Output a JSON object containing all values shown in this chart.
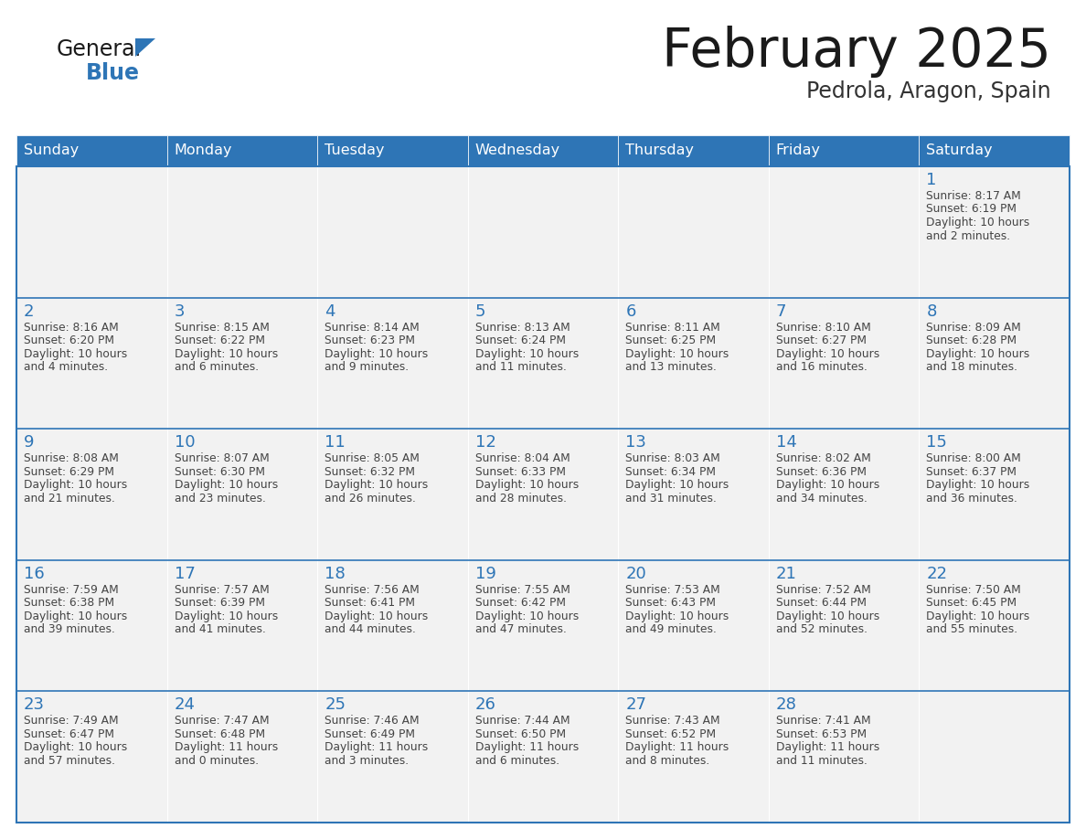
{
  "title": "February 2025",
  "subtitle": "Pedrola, Aragon, Spain",
  "header_bg": "#2E75B6",
  "header_text_color": "#FFFFFF",
  "cell_bg": "#F2F2F2",
  "border_color": "#2E75B6",
  "title_color": "#1A1A1A",
  "subtitle_color": "#333333",
  "day_num_color": "#2E75B6",
  "info_color": "#444444",
  "day_names": [
    "Sunday",
    "Monday",
    "Tuesday",
    "Wednesday",
    "Thursday",
    "Friday",
    "Saturday"
  ],
  "logo_general_color": "#1A1A1A",
  "logo_blue_color": "#2E75B6",
  "logo_triangle_color": "#2E75B6",
  "calendar": [
    [
      null,
      null,
      null,
      null,
      null,
      null,
      {
        "day": "1",
        "sunrise": "8:17 AM",
        "sunset": "6:19 PM",
        "dl1": "Daylight: 10 hours",
        "dl2": "and 2 minutes."
      }
    ],
    [
      {
        "day": "2",
        "sunrise": "8:16 AM",
        "sunset": "6:20 PM",
        "dl1": "Daylight: 10 hours",
        "dl2": "and 4 minutes."
      },
      {
        "day": "3",
        "sunrise": "8:15 AM",
        "sunset": "6:22 PM",
        "dl1": "Daylight: 10 hours",
        "dl2": "and 6 minutes."
      },
      {
        "day": "4",
        "sunrise": "8:14 AM",
        "sunset": "6:23 PM",
        "dl1": "Daylight: 10 hours",
        "dl2": "and 9 minutes."
      },
      {
        "day": "5",
        "sunrise": "8:13 AM",
        "sunset": "6:24 PM",
        "dl1": "Daylight: 10 hours",
        "dl2": "and 11 minutes."
      },
      {
        "day": "6",
        "sunrise": "8:11 AM",
        "sunset": "6:25 PM",
        "dl1": "Daylight: 10 hours",
        "dl2": "and 13 minutes."
      },
      {
        "day": "7",
        "sunrise": "8:10 AM",
        "sunset": "6:27 PM",
        "dl1": "Daylight: 10 hours",
        "dl2": "and 16 minutes."
      },
      {
        "day": "8",
        "sunrise": "8:09 AM",
        "sunset": "6:28 PM",
        "dl1": "Daylight: 10 hours",
        "dl2": "and 18 minutes."
      }
    ],
    [
      {
        "day": "9",
        "sunrise": "8:08 AM",
        "sunset": "6:29 PM",
        "dl1": "Daylight: 10 hours",
        "dl2": "and 21 minutes."
      },
      {
        "day": "10",
        "sunrise": "8:07 AM",
        "sunset": "6:30 PM",
        "dl1": "Daylight: 10 hours",
        "dl2": "and 23 minutes."
      },
      {
        "day": "11",
        "sunrise": "8:05 AM",
        "sunset": "6:32 PM",
        "dl1": "Daylight: 10 hours",
        "dl2": "and 26 minutes."
      },
      {
        "day": "12",
        "sunrise": "8:04 AM",
        "sunset": "6:33 PM",
        "dl1": "Daylight: 10 hours",
        "dl2": "and 28 minutes."
      },
      {
        "day": "13",
        "sunrise": "8:03 AM",
        "sunset": "6:34 PM",
        "dl1": "Daylight: 10 hours",
        "dl2": "and 31 minutes."
      },
      {
        "day": "14",
        "sunrise": "8:02 AM",
        "sunset": "6:36 PM",
        "dl1": "Daylight: 10 hours",
        "dl2": "and 34 minutes."
      },
      {
        "day": "15",
        "sunrise": "8:00 AM",
        "sunset": "6:37 PM",
        "dl1": "Daylight: 10 hours",
        "dl2": "and 36 minutes."
      }
    ],
    [
      {
        "day": "16",
        "sunrise": "7:59 AM",
        "sunset": "6:38 PM",
        "dl1": "Daylight: 10 hours",
        "dl2": "and 39 minutes."
      },
      {
        "day": "17",
        "sunrise": "7:57 AM",
        "sunset": "6:39 PM",
        "dl1": "Daylight: 10 hours",
        "dl2": "and 41 minutes."
      },
      {
        "day": "18",
        "sunrise": "7:56 AM",
        "sunset": "6:41 PM",
        "dl1": "Daylight: 10 hours",
        "dl2": "and 44 minutes."
      },
      {
        "day": "19",
        "sunrise": "7:55 AM",
        "sunset": "6:42 PM",
        "dl1": "Daylight: 10 hours",
        "dl2": "and 47 minutes."
      },
      {
        "day": "20",
        "sunrise": "7:53 AM",
        "sunset": "6:43 PM",
        "dl1": "Daylight: 10 hours",
        "dl2": "and 49 minutes."
      },
      {
        "day": "21",
        "sunrise": "7:52 AM",
        "sunset": "6:44 PM",
        "dl1": "Daylight: 10 hours",
        "dl2": "and 52 minutes."
      },
      {
        "day": "22",
        "sunrise": "7:50 AM",
        "sunset": "6:45 PM",
        "dl1": "Daylight: 10 hours",
        "dl2": "and 55 minutes."
      }
    ],
    [
      {
        "day": "23",
        "sunrise": "7:49 AM",
        "sunset": "6:47 PM",
        "dl1": "Daylight: 10 hours",
        "dl2": "and 57 minutes."
      },
      {
        "day": "24",
        "sunrise": "7:47 AM",
        "sunset": "6:48 PM",
        "dl1": "Daylight: 11 hours",
        "dl2": "and 0 minutes."
      },
      {
        "day": "25",
        "sunrise": "7:46 AM",
        "sunset": "6:49 PM",
        "dl1": "Daylight: 11 hours",
        "dl2": "and 3 minutes."
      },
      {
        "day": "26",
        "sunrise": "7:44 AM",
        "sunset": "6:50 PM",
        "dl1": "Daylight: 11 hours",
        "dl2": "and 6 minutes."
      },
      {
        "day": "27",
        "sunrise": "7:43 AM",
        "sunset": "6:52 PM",
        "dl1": "Daylight: 11 hours",
        "dl2": "and 8 minutes."
      },
      {
        "day": "28",
        "sunrise": "7:41 AM",
        "sunset": "6:53 PM",
        "dl1": "Daylight: 11 hours",
        "dl2": "and 11 minutes."
      },
      null
    ]
  ]
}
